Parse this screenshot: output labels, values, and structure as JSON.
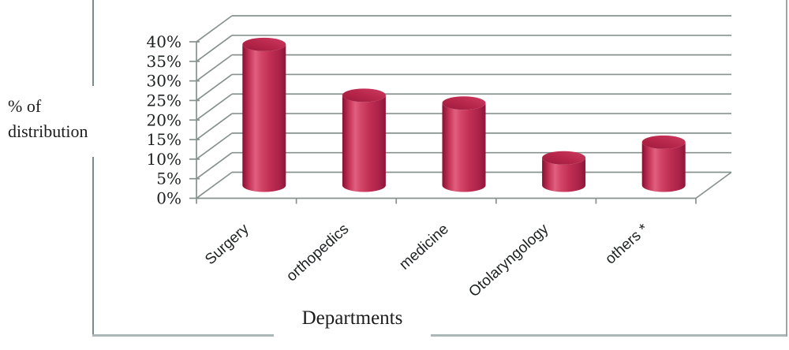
{
  "figure": {
    "y_axis_title_line1": "% of",
    "y_axis_title_line2": "distribution",
    "x_axis_title": "Departments"
  },
  "chart_data": {
    "type": "bar",
    "subtype": "3d-cylinder",
    "title": "",
    "xlabel": "Departments",
    "ylabel": "% of distribution",
    "categories": [
      "Surgery",
      "orthopedics",
      "medicine",
      "Otolaryngology",
      "others *"
    ],
    "values": [
      36,
      23,
      21,
      7,
      11
    ],
    "unit": "%",
    "ylim": [
      0,
      40
    ],
    "ytick_step": 5,
    "ytick_labels": [
      "0%",
      "5%",
      "10%",
      "15%",
      "20%",
      "25%",
      "30%",
      "35%",
      "40%"
    ],
    "grid": true,
    "legend": false,
    "colors": {
      "bar_dark_edge": "#82102f",
      "bar_shadow": "#9c1a3f",
      "bar_highlight": "#e0607f",
      "bar_main": "#c22f55",
      "bar_right_edge": "#8e1539",
      "bar_top_dark": "#9c1a40",
      "bar_top_light": "#cd3b60",
      "gridline": "#87928f",
      "axis_text": "#1d2021",
      "frame_left": "#7b8a8a",
      "frame_bottom": "#abb7b7",
      "frame_right": "#9aa6a6"
    }
  }
}
